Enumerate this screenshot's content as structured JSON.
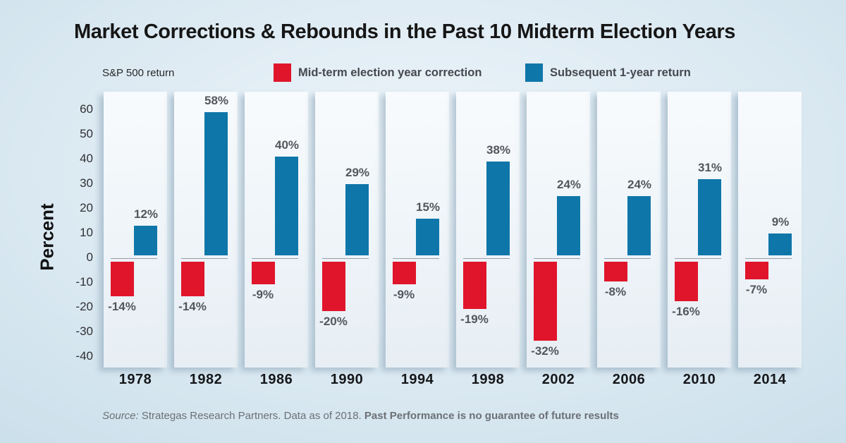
{
  "chart_data": {
    "type": "bar",
    "title": "Market Corrections & Rebounds in the Past 10 Midterm Election Years",
    "subtitle": "S&P 500 return",
    "ylabel": "Percent",
    "ylim": [
      -40,
      60
    ],
    "yticks": [
      60,
      50,
      40,
      30,
      20,
      10,
      0,
      -10,
      -20,
      -30,
      -40
    ],
    "grid": false,
    "legend_position": "top",
    "categories": [
      "1978",
      "1982",
      "1986",
      "1990",
      "1994",
      "1998",
      "2002",
      "2006",
      "2010",
      "2014"
    ],
    "series": [
      {
        "name": "Mid-term election year correction",
        "color": "#e0152b",
        "values": [
          -14,
          -14,
          -9,
          -20,
          -9,
          -19,
          -32,
          -8,
          -16,
          -7
        ],
        "labels": [
          "-14%",
          "-14%",
          "-9%",
          "-20%",
          "-9%",
          "-19%",
          "-32%",
          "-8%",
          "-16%",
          "-7%"
        ]
      },
      {
        "name": "Subsequent 1-year return",
        "color": "#0f76a9",
        "values": [
          12,
          58,
          40,
          29,
          15,
          38,
          24,
          24,
          31,
          9
        ],
        "labels": [
          "12%",
          "58%",
          "40%",
          "29%",
          "15%",
          "38%",
          "24%",
          "24%",
          "31%",
          "9%"
        ]
      }
    ],
    "source": {
      "prefix": "Source:",
      "main": "Strategas Research Partners. Data as of 2018.",
      "emphasis": "Past Performance is no guarantee of future results"
    }
  }
}
